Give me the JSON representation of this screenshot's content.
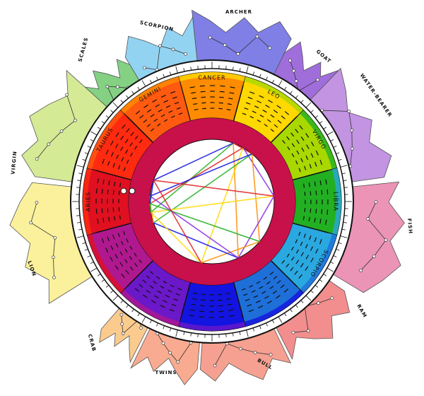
{
  "constellations": [
    {
      "label": "ARCHER"
    },
    {
      "label": "SCORPION"
    },
    {
      "label": "SCALES"
    },
    {
      "label": "VIRGIN"
    },
    {
      "label": "LION"
    },
    {
      "label": "CRAB"
    },
    {
      "label": "TWINS"
    },
    {
      "label": "BULL"
    },
    {
      "label": "RAM"
    },
    {
      "label": "FISH"
    },
    {
      "label": "WATER-BEARER"
    },
    {
      "label": "GOAT"
    }
  ],
  "signs": [
    {
      "label": "CANCER"
    },
    {
      "label": "LEO"
    },
    {
      "label": "VIRGO"
    },
    {
      "label": "LIBRA"
    },
    {
      "label": "SCORPIO"
    },
    {
      "label": "GEMINI"
    },
    {
      "label": "TAURUS"
    },
    {
      "label": "ARIES"
    }
  ]
}
